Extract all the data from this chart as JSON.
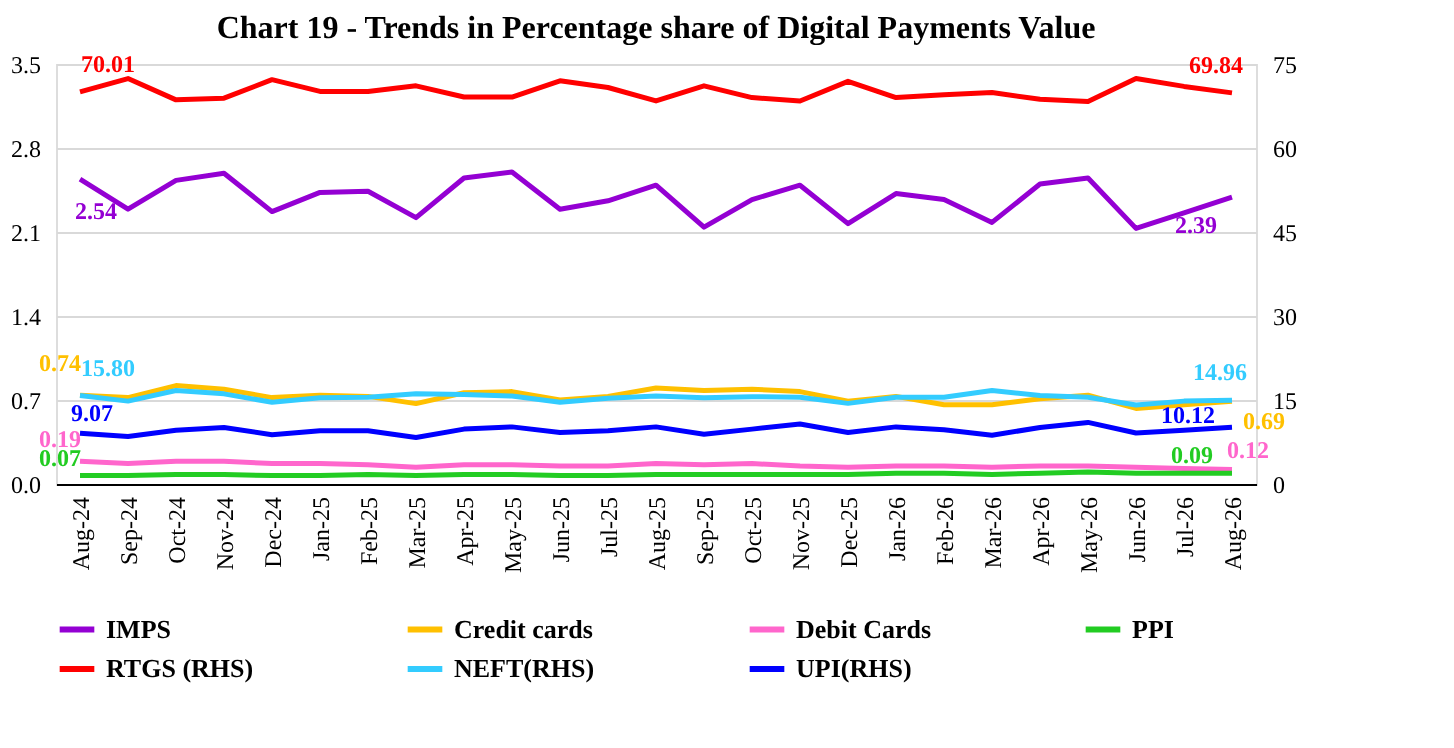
{
  "chart_data": {
    "type": "line",
    "title": "Chart 19 - Trends in Percentage share of Digital Payments Value",
    "categories": [
      "Aug-24",
      "Sep-24",
      "Oct-24",
      "Nov-24",
      "Dec-24",
      "Jan-25",
      "Feb-25",
      "Mar-25",
      "Apr-25",
      "May-25",
      "Jun-25",
      "Jul-25",
      "Aug-25",
      "Sep-25",
      "Oct-25",
      "Nov-25",
      "Dec-25",
      "Jan-26",
      "Feb-26",
      "Mar-26",
      "Apr-26",
      "May-26",
      "Jun-26",
      "Jul-26",
      "Aug-26"
    ],
    "ylim": [
      0,
      3.5
    ],
    "yticks": [
      {
        "value": 0,
        "label": "0.0"
      },
      0.7,
      1.4,
      2.1,
      2.8,
      3.5
    ],
    "y2lim": [
      0,
      75
    ],
    "y2ticks": [
      0,
      15,
      30,
      45,
      60,
      75
    ],
    "grid": "y",
    "legend": "bottom",
    "line_style": "solid",
    "marker": "none",
    "series": [
      {
        "name": "IMPS",
        "color": "#9400d3",
        "values": [
          2.54,
          2.29,
          2.53,
          2.59,
          2.27,
          2.43,
          2.44,
          2.22,
          2.55,
          2.6,
          2.29,
          2.36,
          2.49,
          2.14,
          2.37,
          2.49,
          2.17,
          2.42,
          2.37,
          2.18,
          2.5,
          2.55,
          2.13,
          2.26,
          2.39
        ],
        "value_labels": [
          "2.54",
          null,
          null,
          null,
          null,
          null,
          null,
          null,
          null,
          null,
          null,
          null,
          null,
          null,
          null,
          null,
          null,
          null,
          null,
          null,
          null,
          null,
          null,
          null,
          "2.39"
        ]
      },
      {
        "name": "Credit cards",
        "color": "#ffc000",
        "values": [
          0.74,
          0.72,
          0.82,
          0.79,
          0.72,
          0.74,
          0.73,
          0.67,
          0.76,
          0.77,
          0.7,
          0.73,
          0.8,
          0.78,
          0.79,
          0.77,
          0.69,
          0.73,
          0.66,
          0.66,
          0.71,
          0.74,
          0.63,
          0.66,
          0.69
        ],
        "value_labels": [
          "0.74",
          null,
          null,
          null,
          null,
          null,
          null,
          null,
          null,
          null,
          null,
          null,
          null,
          null,
          null,
          null,
          null,
          null,
          null,
          null,
          null,
          null,
          null,
          null,
          "0.69"
        ]
      },
      {
        "name": "Debit Cards",
        "color": "#ff66cc",
        "values": [
          0.19,
          0.17,
          0.19,
          0.19,
          0.17,
          0.17,
          0.16,
          0.14,
          0.16,
          0.16,
          0.15,
          0.15,
          0.17,
          0.16,
          0.17,
          0.15,
          0.14,
          0.15,
          0.15,
          0.14,
          0.15,
          0.15,
          0.14,
          0.13,
          0.12
        ],
        "value_labels": [
          "0.19",
          null,
          null,
          null,
          null,
          null,
          null,
          null,
          null,
          null,
          null,
          null,
          null,
          null,
          null,
          null,
          null,
          null,
          null,
          null,
          null,
          null,
          null,
          null,
          "0.12"
        ]
      },
      {
        "name": "PPI",
        "color": "#22cc22",
        "values": [
          0.07,
          0.07,
          0.08,
          0.08,
          0.07,
          0.07,
          0.08,
          0.07,
          0.08,
          0.08,
          0.07,
          0.07,
          0.08,
          0.08,
          0.08,
          0.08,
          0.08,
          0.09,
          0.09,
          0.08,
          0.09,
          0.1,
          0.09,
          0.09,
          0.09
        ],
        "value_labels": [
          "0.07",
          null,
          null,
          null,
          null,
          null,
          null,
          null,
          null,
          null,
          null,
          null,
          null,
          null,
          null,
          null,
          null,
          null,
          null,
          null,
          null,
          null,
          null,
          null,
          "0.09"
        ]
      },
      {
        "name": "RTGS (RHS)",
        "color": "#ff0000",
        "axis": "y2",
        "values": [
          70.01,
          72.4,
          68.6,
          68.9,
          72.2,
          70.1,
          70.1,
          71.1,
          69.1,
          69.1,
          72.0,
          70.8,
          68.4,
          71.1,
          69.0,
          68.4,
          71.9,
          69.0,
          69.5,
          69.9,
          68.7,
          68.3,
          72.4,
          71.0,
          69.84
        ],
        "value_labels": [
          "70.01",
          null,
          null,
          null,
          null,
          null,
          null,
          null,
          null,
          null,
          null,
          null,
          null,
          null,
          null,
          null,
          null,
          null,
          null,
          null,
          null,
          null,
          null,
          null,
          "69.84"
        ]
      },
      {
        "name": "NEFT(RHS)",
        "color": "#33ccff",
        "axis": "y2",
        "values": [
          15.8,
          14.8,
          16.7,
          16.1,
          14.6,
          15.4,
          15.5,
          16.1,
          16.0,
          15.7,
          14.6,
          15.3,
          15.7,
          15.4,
          15.6,
          15.5,
          14.4,
          15.5,
          15.5,
          16.7,
          15.8,
          15.5,
          14.1,
          14.8,
          14.96
        ],
        "value_labels": [
          "15.80",
          null,
          null,
          null,
          null,
          null,
          null,
          null,
          null,
          null,
          null,
          null,
          null,
          null,
          null,
          null,
          null,
          null,
          null,
          null,
          null,
          null,
          null,
          null,
          "14.96"
        ]
      },
      {
        "name": "UPI(RHS)",
        "color": "#0000ff",
        "axis": "y2",
        "values": [
          9.07,
          8.5,
          9.6,
          10.1,
          8.8,
          9.5,
          9.5,
          8.3,
          9.8,
          10.2,
          9.2,
          9.5,
          10.2,
          8.9,
          9.8,
          10.7,
          9.2,
          10.2,
          9.7,
          8.7,
          10.1,
          11.0,
          9.1,
          9.6,
          10.12
        ],
        "value_labels": [
          "9.07",
          null,
          null,
          null,
          null,
          null,
          null,
          null,
          null,
          null,
          null,
          null,
          null,
          null,
          null,
          null,
          null,
          null,
          null,
          null,
          null,
          null,
          null,
          null,
          "10.12"
        ]
      }
    ]
  }
}
